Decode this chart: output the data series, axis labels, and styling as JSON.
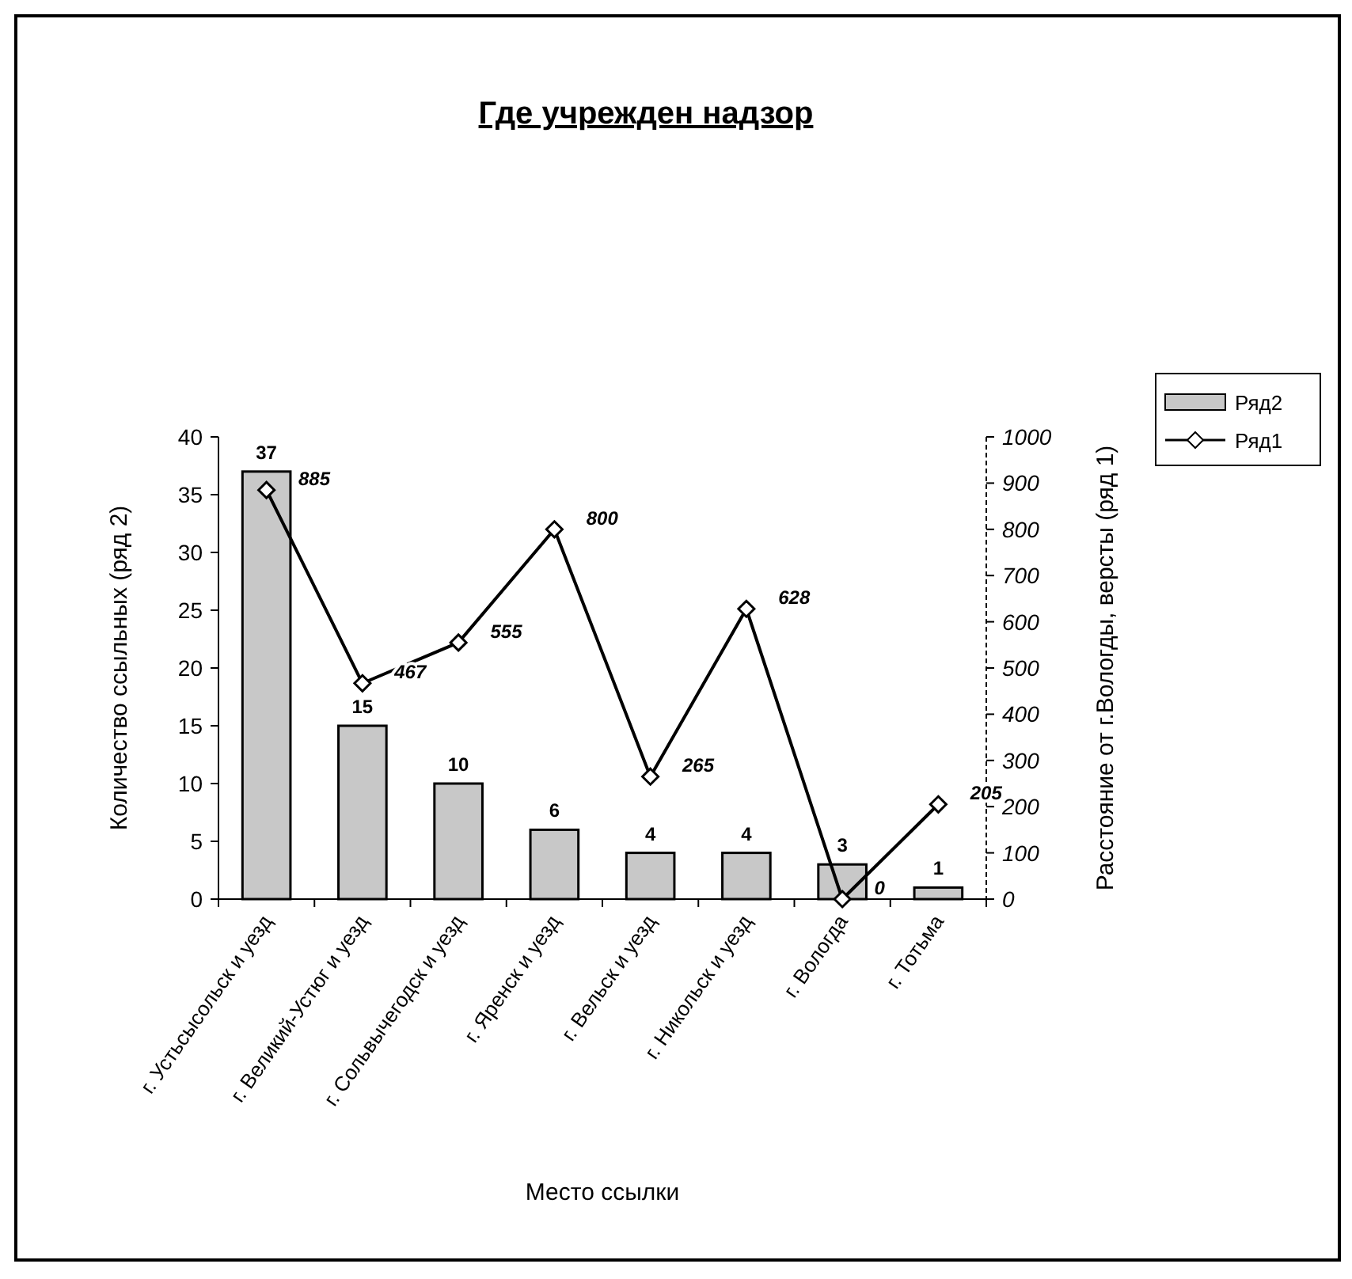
{
  "chart_data": {
    "type": "bar",
    "title": "Где учрежден надзор",
    "xlabel": "Место ссылки",
    "ylabel": "Количество ссыльных (ряд 2)",
    "y2label": "Расстояние от г.Вологды, версты (ряд 1)",
    "categories": [
      "г. Устьсысольск и уезд",
      "г. Великий-Устюг и уезд",
      "г. Сольвычегодск и уезд",
      "г. Яренск и уезд",
      "г. Вельск и уезд",
      "г. Никольск и уезд",
      "г. Вологда",
      "г. Тотьма"
    ],
    "series": [
      {
        "name": "Ряд2",
        "color": "#c8c8c8",
        "values": [
          37,
          15,
          10,
          6,
          4,
          4,
          3,
          1
        ]
      },
      {
        "name": "Ряд1",
        "type": "line",
        "axis": "y2",
        "color": "#000000",
        "marker": "diamond",
        "values": [
          885,
          467,
          555,
          800,
          265,
          628,
          0,
          205
        ]
      }
    ],
    "ylim": [
      0,
      40
    ],
    "yticks": [
      0,
      5,
      10,
      15,
      20,
      25,
      30,
      35,
      40
    ],
    "y2lim": [
      0,
      1000
    ],
    "y2ticks": [
      0,
      100,
      200,
      300,
      400,
      500,
      600,
      700,
      800,
      900,
      1000
    ],
    "data_labels": true,
    "grid": false,
    "legend": "top right"
  }
}
